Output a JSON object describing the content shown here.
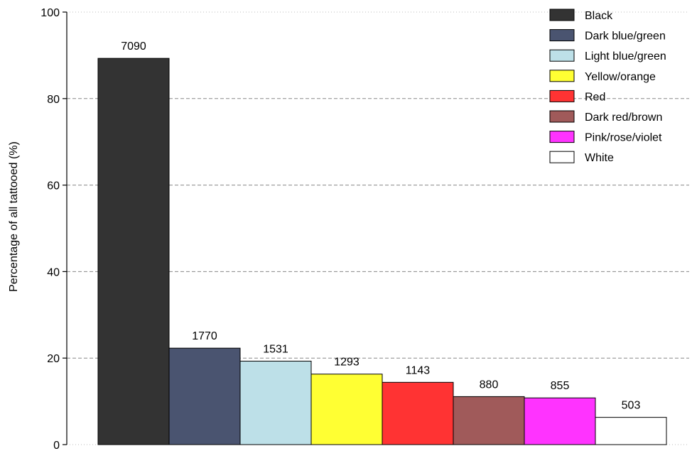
{
  "chart_data": {
    "type": "bar",
    "title": "",
    "xlabel": "",
    "ylabel": "Percentage of all tattooed (%)",
    "ylim": [
      0,
      100
    ],
    "yticks": [
      0,
      20,
      40,
      60,
      80,
      100
    ],
    "grid": "horizontal dashed",
    "legend_position": "top-right",
    "categories": [
      "Black",
      "Dark blue/green",
      "Light blue/green",
      "Yellow/orange",
      "Red",
      "Dark red/brown",
      "Pink/rose/violet",
      "White"
    ],
    "values": [
      89.3,
      22.3,
      19.3,
      16.3,
      14.4,
      11.1,
      10.8,
      6.3
    ],
    "data_labels": [
      "7090",
      "1770",
      "1531",
      "1293",
      "1143",
      "880",
      "855",
      "503"
    ],
    "colors": [
      "#333333",
      "#4a5470",
      "#bde0e8",
      "#ffff33",
      "#ff3333",
      "#a05a5a",
      "#ff33ff",
      "#ffffff"
    ]
  }
}
